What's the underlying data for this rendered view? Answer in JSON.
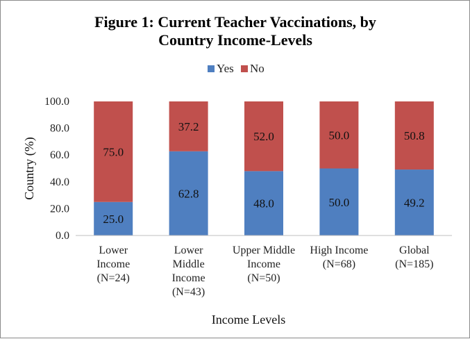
{
  "chart_data": {
    "type": "bar",
    "stacked": true,
    "title_lines": [
      "Figure 1: Current Teacher Vaccinations, by",
      "Country Income-Levels"
    ],
    "xlabel": "Income Levels",
    "ylabel": "Country (%)",
    "ylim": [
      0,
      100
    ],
    "yticks": [
      "0.0",
      "20.0",
      "40.0",
      "60.0",
      "80.0",
      "100.0"
    ],
    "grid": false,
    "legend_position": "top-center",
    "categories": [
      [
        "Lower",
        "Income",
        "(N=24)"
      ],
      [
        "Lower",
        "Middle",
        "Income",
        "(N=43)"
      ],
      [
        "Upper Middle",
        "Income",
        "(N=50)"
      ],
      [
        "High Income",
        "(N=68)"
      ],
      [
        "Global",
        "(N=185)"
      ]
    ],
    "series": [
      {
        "name": "Yes",
        "color": "#4f7fc0",
        "values": [
          25.0,
          62.8,
          48.0,
          50.0,
          49.2
        ],
        "labels": [
          "25.0",
          "62.8",
          "48.0",
          "50.0",
          "49.2"
        ]
      },
      {
        "name": "No",
        "color": "#c0504d",
        "values": [
          75.0,
          37.2,
          52.0,
          50.0,
          50.8
        ],
        "labels": [
          "75.0",
          "37.2",
          "52.0",
          "50.0",
          "50.8"
        ]
      }
    ]
  }
}
